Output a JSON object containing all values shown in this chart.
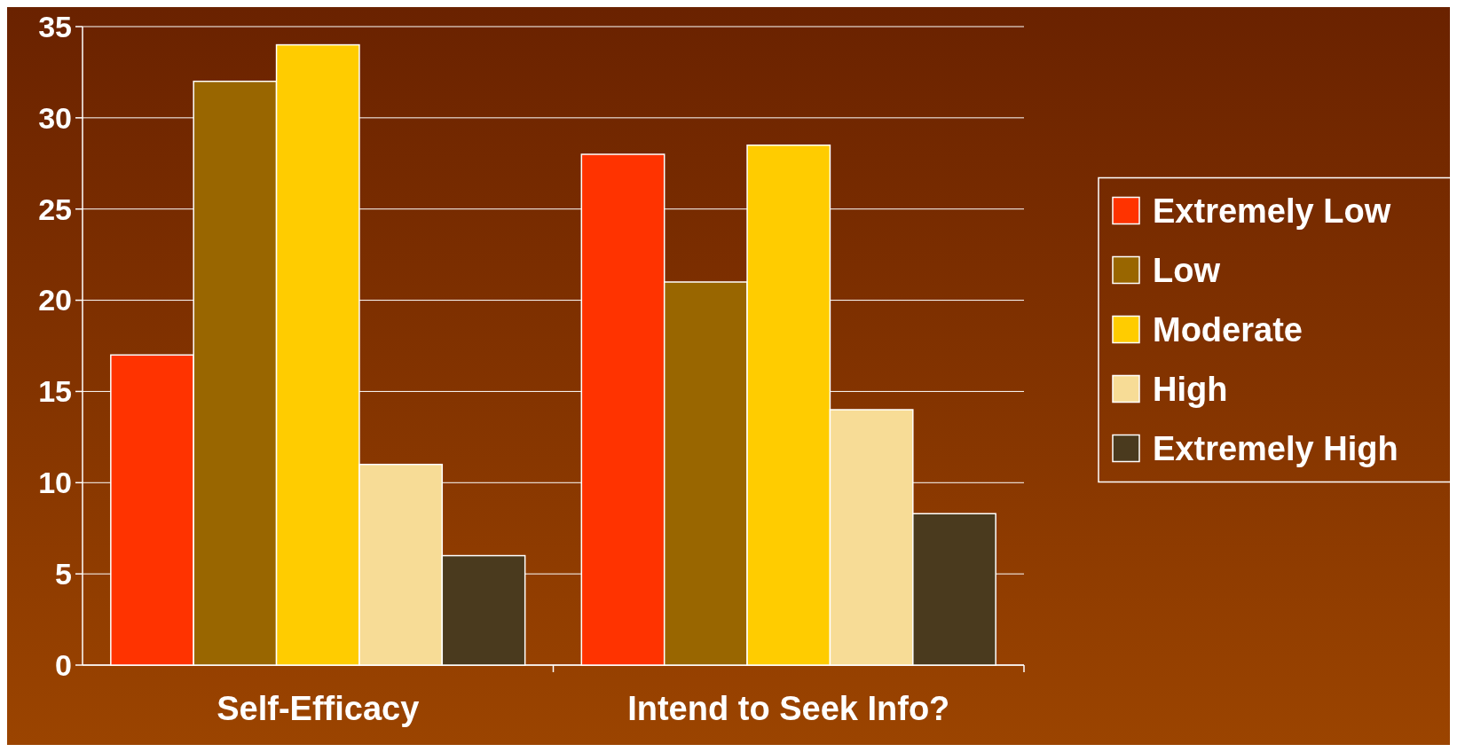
{
  "chart_data": {
    "type": "bar",
    "categories": [
      "Self-Efficacy",
      "Intend to Seek Info?"
    ],
    "series": [
      {
        "name": "Extremely Low",
        "color": "#ff3300",
        "values": [
          17,
          28
        ]
      },
      {
        "name": "Low",
        "color": "#996600",
        "values": [
          32,
          21
        ]
      },
      {
        "name": "Moderate",
        "color": "#ffcc00",
        "values": [
          34,
          28.5
        ]
      },
      {
        "name": "High",
        "color": "#f7dc96",
        "values": [
          11,
          14
        ]
      },
      {
        "name": "Extremely High",
        "color": "#4a3a1e",
        "values": [
          6,
          8.3
        ]
      }
    ],
    "ylim": [
      0,
      35
    ],
    "yticks": [
      0,
      5,
      10,
      15,
      20,
      25,
      30,
      35
    ],
    "grid": "y",
    "legend": "right"
  }
}
